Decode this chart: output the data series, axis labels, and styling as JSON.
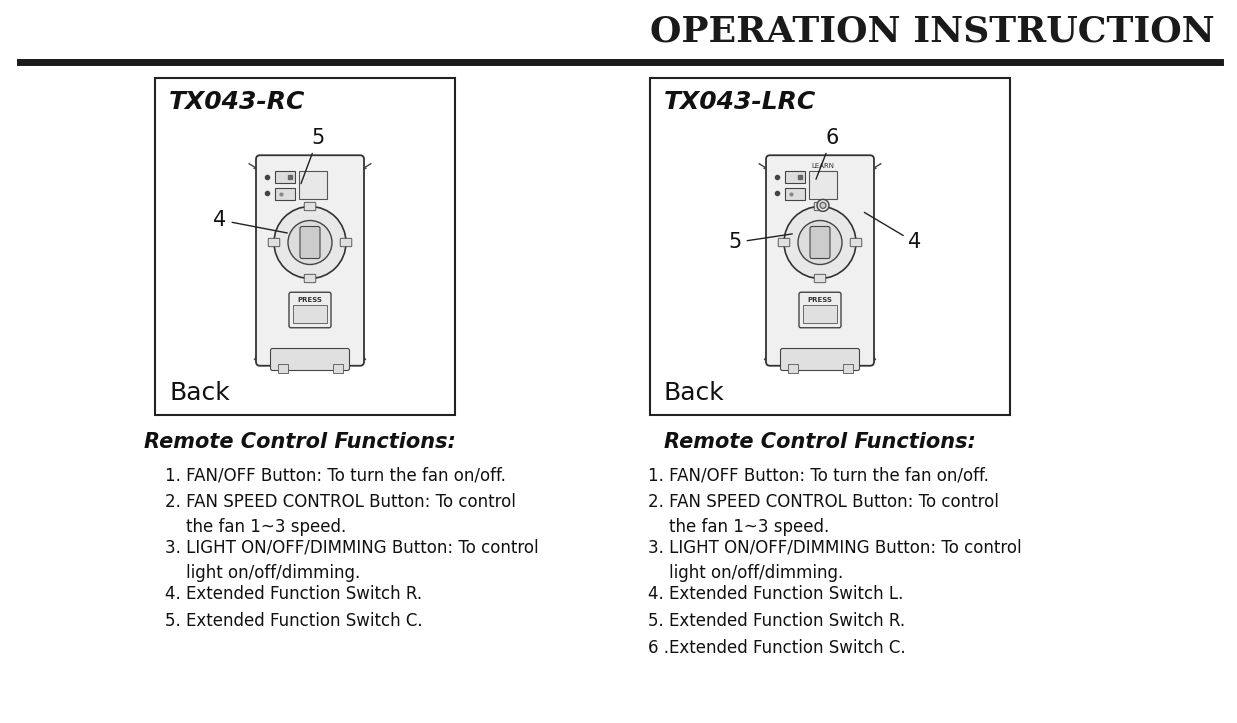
{
  "title": "OPERATION INSTRUCTION",
  "title_fontsize": 26,
  "title_color": "#1a1a1a",
  "bg_color": "#ffffff",
  "left_box_title": "TX043-RC",
  "right_box_title": "TX043-LRC",
  "left_box_label": "Back",
  "right_box_label": "Back",
  "left_section_title": "Remote Control Functions:",
  "right_section_title": "Remote Control Functions:",
  "left_items": [
    "1. FAN/OFF Button: To turn the fan on/off.",
    "2. FAN SPEED CONTROL Button: To control\n    the fan 1~3 speed.",
    "3. LIGHT ON/OFF/DIMMING Button: To control\n    light on/off/dimming.",
    "4. Extended Function Switch R.",
    "5. Extended Function Switch C."
  ],
  "right_items": [
    "1. FAN/OFF Button: To turn the fan on/off.",
    "2. FAN SPEED CONTROL Button: To control\n    the fan 1~3 speed.",
    "3. LIGHT ON/OFF/DIMMING Button: To control\n    light on/off/dimming.",
    "4. Extended Function Switch L.",
    "5. Extended Function Switch R.",
    "6 .Extended Function Switch C."
  ]
}
